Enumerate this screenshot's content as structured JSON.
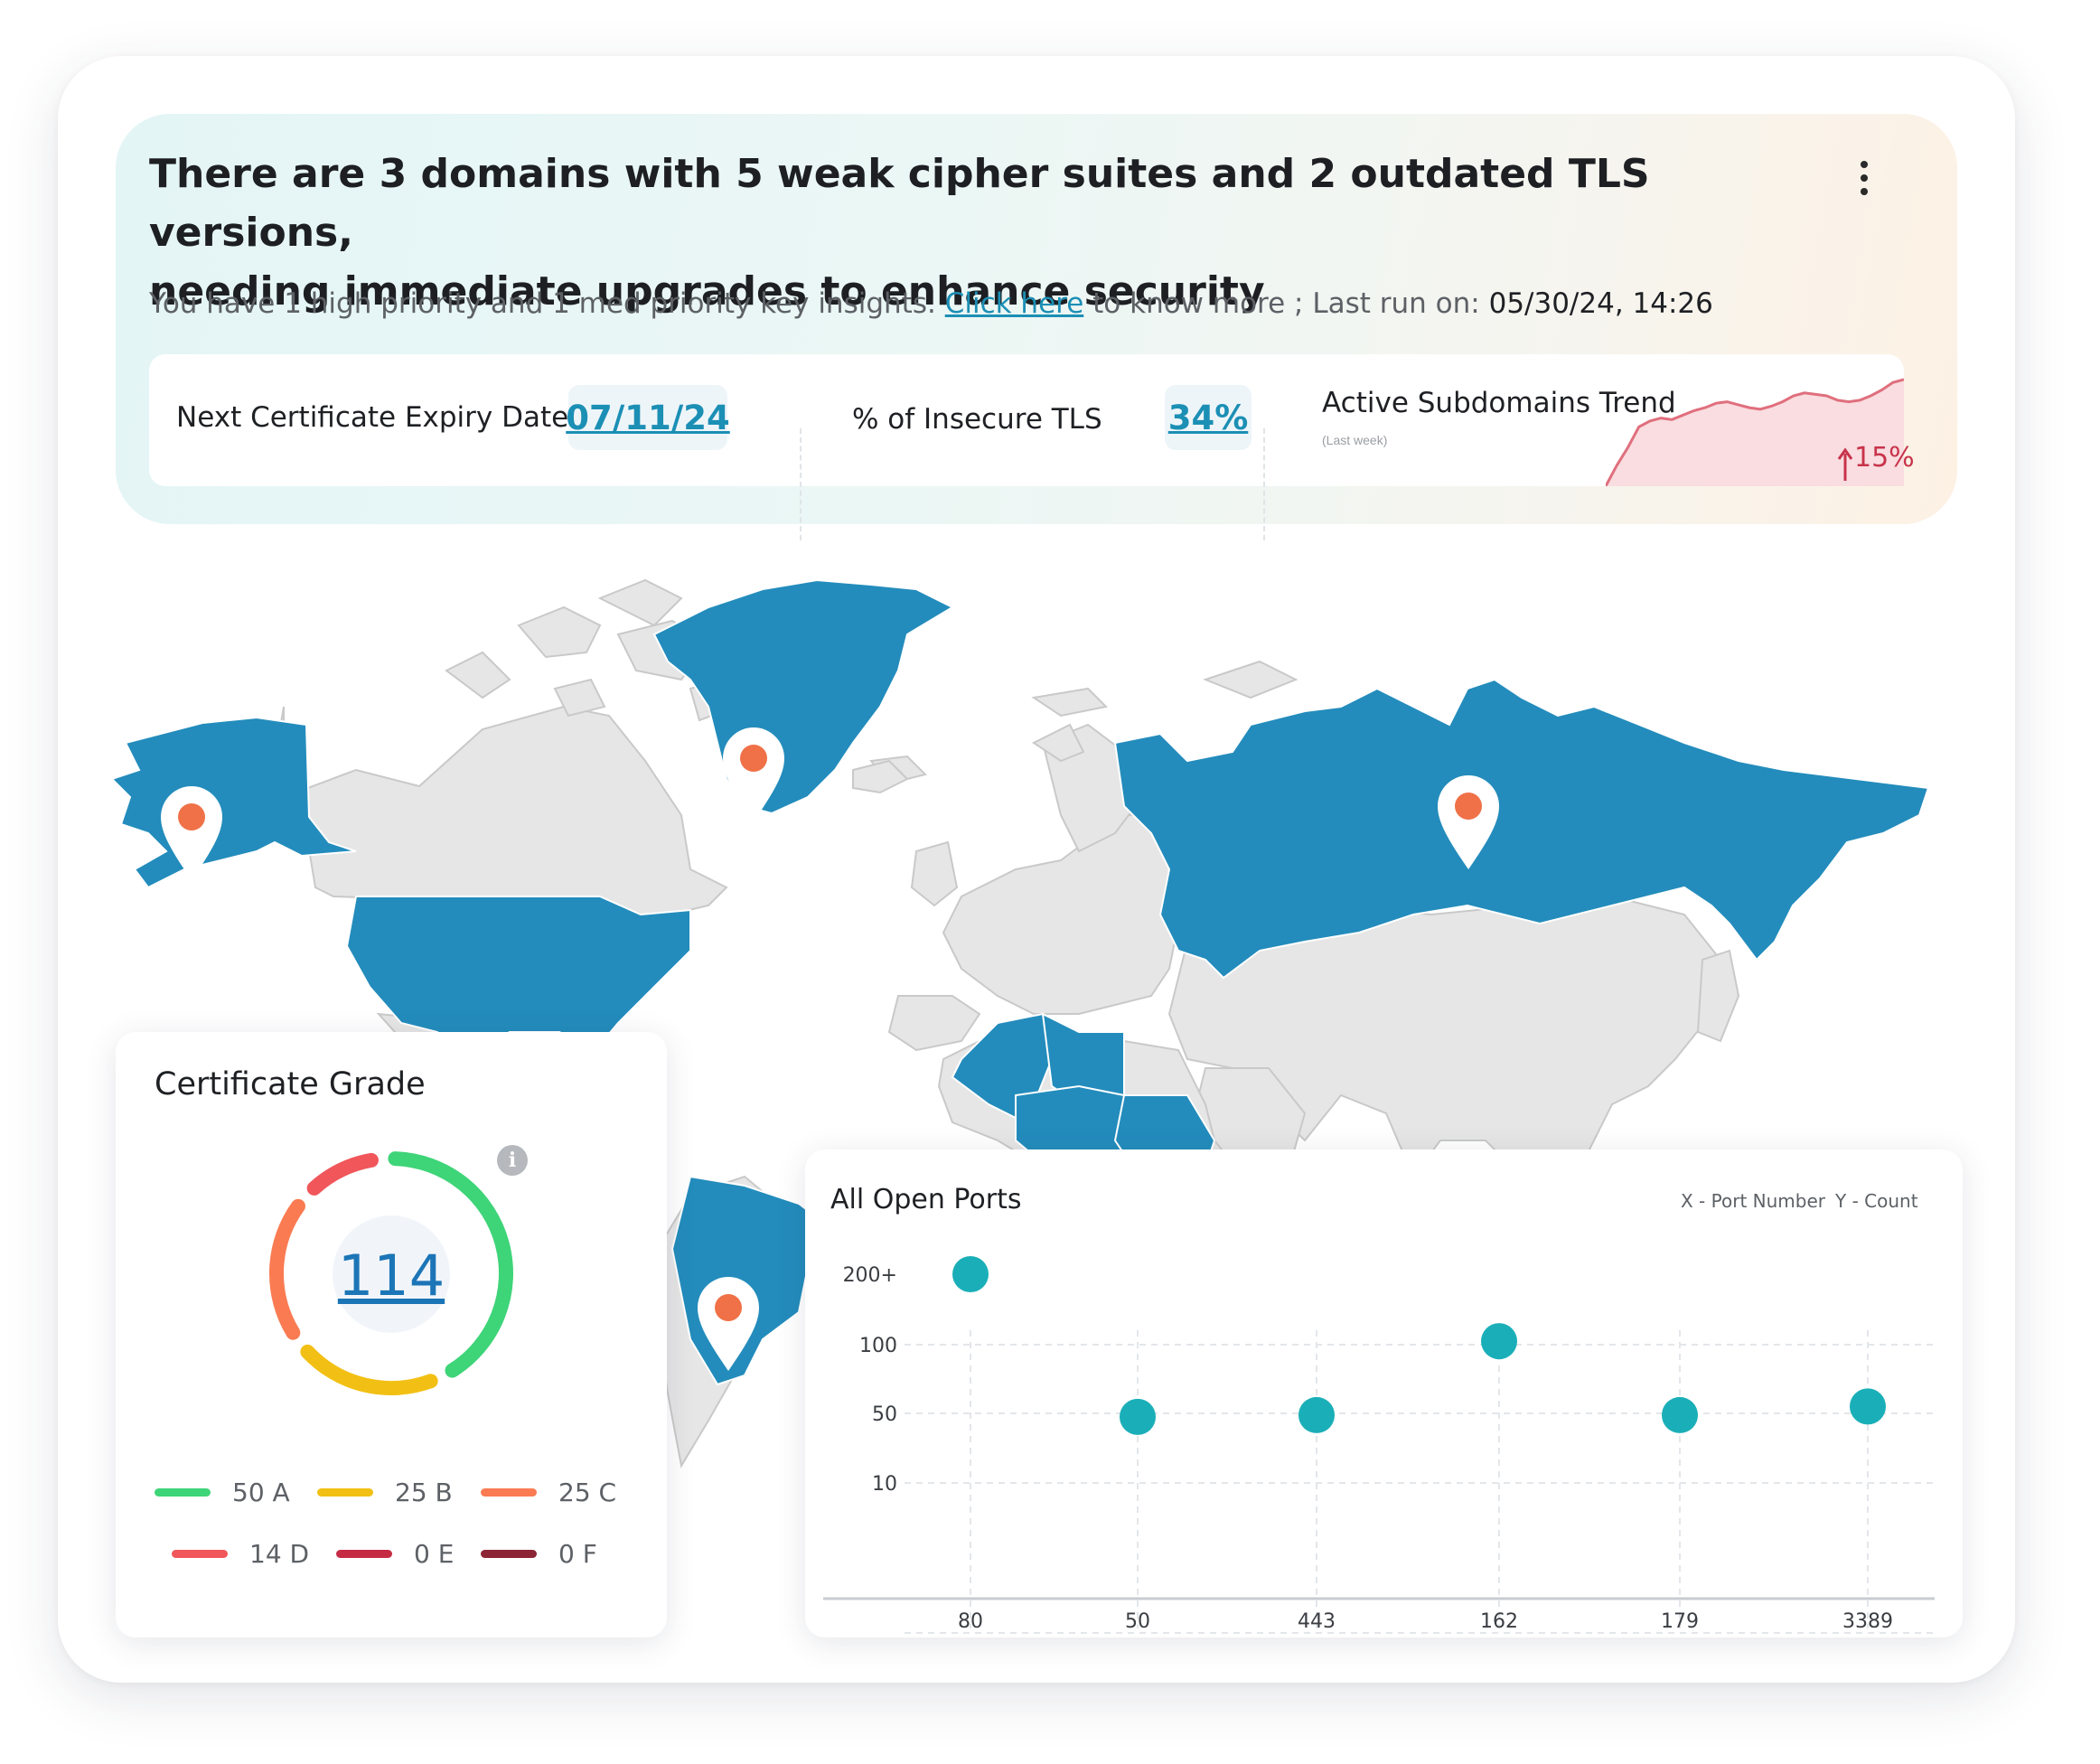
{
  "banner": {
    "headline_line1": "There are 3 domains with 5 weak cipher suites and 2 outdated TLS versions,",
    "headline_line2": "needing immediate upgrades to enhance security",
    "insight_prefix": "You have 1 high priority and 1 med priority key insights.",
    "insight_link": "Click here",
    "insight_suffix": "to know more ; Last run on:",
    "last_run": "05/30/24, 14:26"
  },
  "stats": {
    "expiry_label": "Next Certificate Expiry Date",
    "expiry_value": "07/11/24",
    "insecure_label": "% of Insecure TLS",
    "insecure_value": "34%",
    "trend_title": "Active Subdomains Trend",
    "trend_subtitle": "(Last week)",
    "trend_change": "15%",
    "trend_direction": "up",
    "trend_series": [
      0,
      14,
      26,
      40,
      44,
      46,
      45,
      48,
      51,
      53,
      56,
      57,
      55,
      53,
      52,
      54,
      57,
      61,
      63,
      62,
      61,
      58,
      57,
      58,
      61,
      65,
      70,
      72
    ]
  },
  "map": {
    "highlight_color": "#238cbc",
    "base_color": "#e6e6e6",
    "marker_color": "#f07147",
    "highlighted_regions": [
      "Alaska",
      "United States",
      "Greenland",
      "Russia",
      "Brazil",
      "Algeria",
      "Libya",
      "Niger",
      "Chad",
      "Sudan"
    ],
    "markers": [
      "Alaska",
      "Greenland",
      "Russia",
      "Brazil"
    ]
  },
  "certificate_grade": {
    "title": "Certificate Grade",
    "total": "114",
    "grades": [
      {
        "label": "50 A",
        "count": 50,
        "color": "#3ed478"
      },
      {
        "label": "25 B",
        "count": 25,
        "color": "#f2c014"
      },
      {
        "label": "25 C",
        "count": 25,
        "color": "#fa7b52"
      },
      {
        "label": "14 D",
        "count": 14,
        "color": "#f0565a"
      },
      {
        "label": "0 E",
        "count": 0,
        "color": "#c52c43"
      },
      {
        "label": "0 F",
        "count": 0,
        "color": "#8c2535"
      }
    ]
  },
  "ports": {
    "title": "All Open Ports",
    "x_note": "X - Port Number",
    "y_note": "Y - Count",
    "dot_color": "#1aafb8"
  },
  "chart_data": {
    "type": "scatter",
    "title": "All Open Ports",
    "xlabel": "X - Port Number",
    "ylabel": "Y - Count",
    "categories": [
      "80",
      "50",
      "443",
      "162",
      "179",
      "3389"
    ],
    "y_ticks": [
      "200+",
      "100",
      "50",
      "10"
    ],
    "values": [
      200,
      48,
      49,
      105,
      49,
      55
    ],
    "grid": true
  }
}
